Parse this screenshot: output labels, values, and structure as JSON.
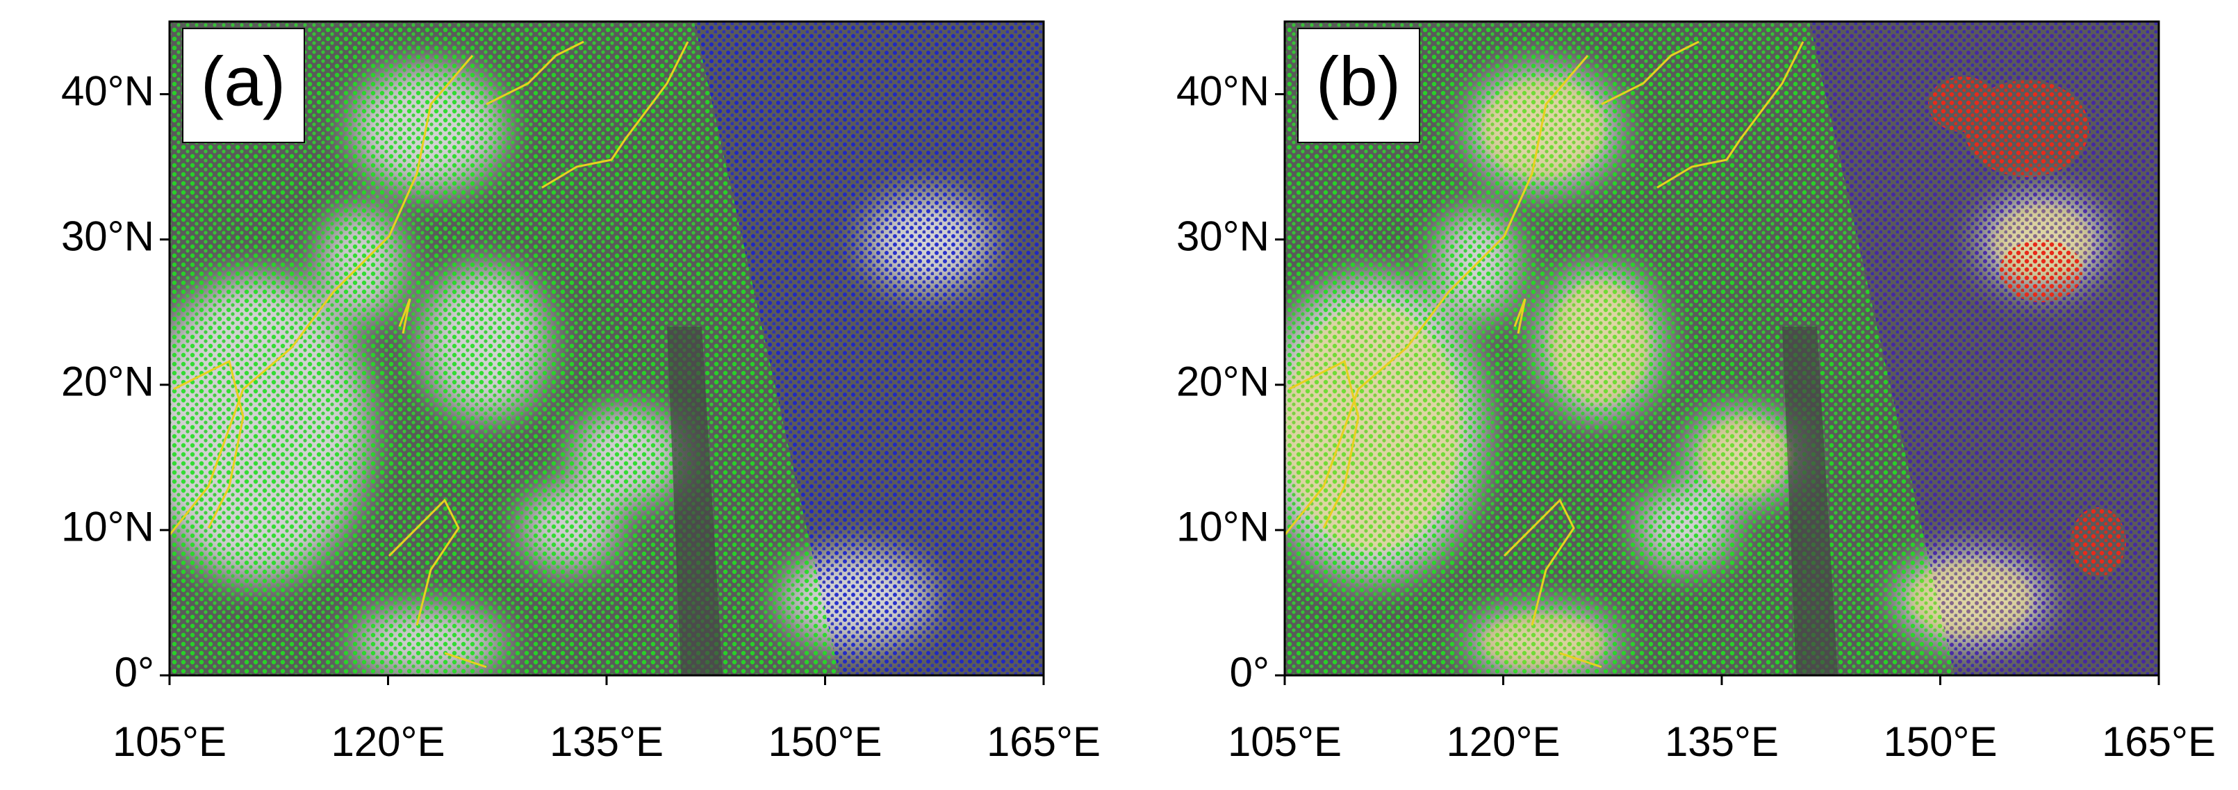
{
  "panels": [
    {
      "label": "(a)"
    },
    {
      "label": "(b)"
    }
  ],
  "xaxis": {
    "xlim": [
      105,
      165
    ],
    "xticks": [
      {
        "value": 105,
        "label": "105°E"
      },
      {
        "value": 120,
        "label": "120°E"
      },
      {
        "value": 135,
        "label": "135°E"
      },
      {
        "value": 150,
        "label": "150°E"
      },
      {
        "value": 165,
        "label": "165°E"
      }
    ]
  },
  "yaxis": {
    "ylim": [
      0,
      45
    ],
    "yticks": [
      {
        "value": 0,
        "label": "0°"
      },
      {
        "value": 10,
        "label": "10°N"
      },
      {
        "value": 20,
        "label": "20°N"
      },
      {
        "value": 30,
        "label": "30°N"
      },
      {
        "value": 40,
        "label": "40°N"
      }
    ]
  }
}
